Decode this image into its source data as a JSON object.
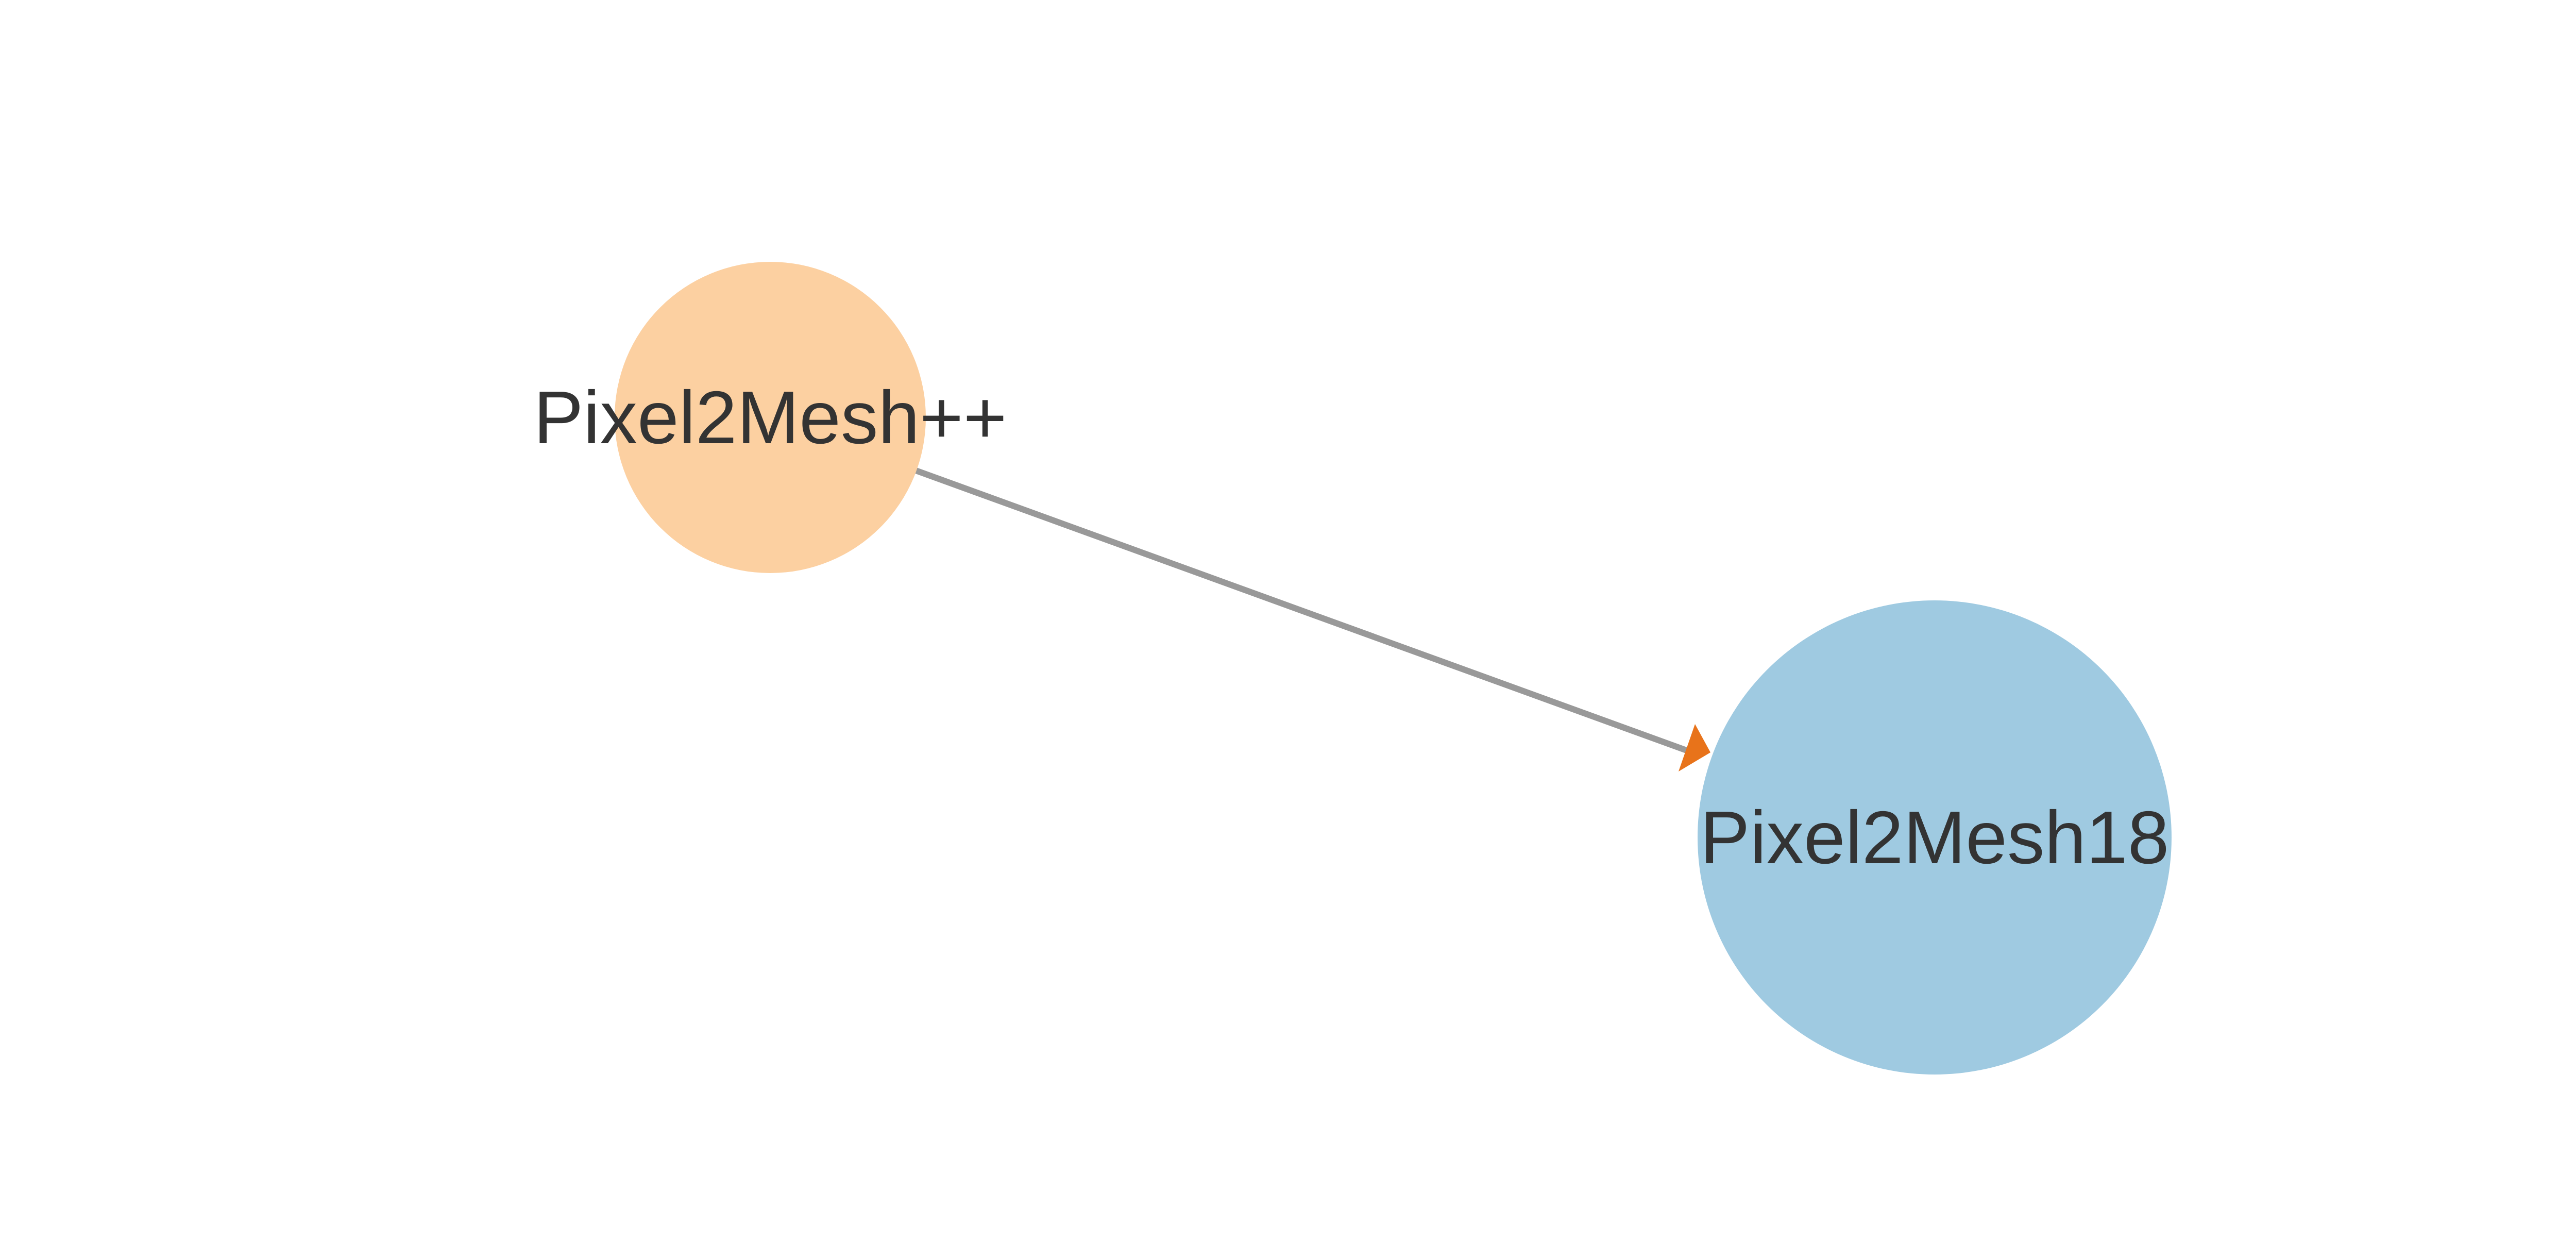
{
  "diagram": {
    "type": "directed-graph",
    "background_color": "#ffffff",
    "nodes": [
      {
        "id": "pixel2mesh-pp",
        "label": "Pixel2Mesh++",
        "color": "#fcd0a1"
      },
      {
        "id": "pixel2mesh18",
        "label": "Pixel2Mesh18",
        "color": "#9fcae1"
      }
    ],
    "edges": [
      {
        "from": "pixel2mesh-pp",
        "to": "pixel2mesh18",
        "line_color": "#999999",
        "arrow_color": "#e8731a"
      }
    ]
  }
}
